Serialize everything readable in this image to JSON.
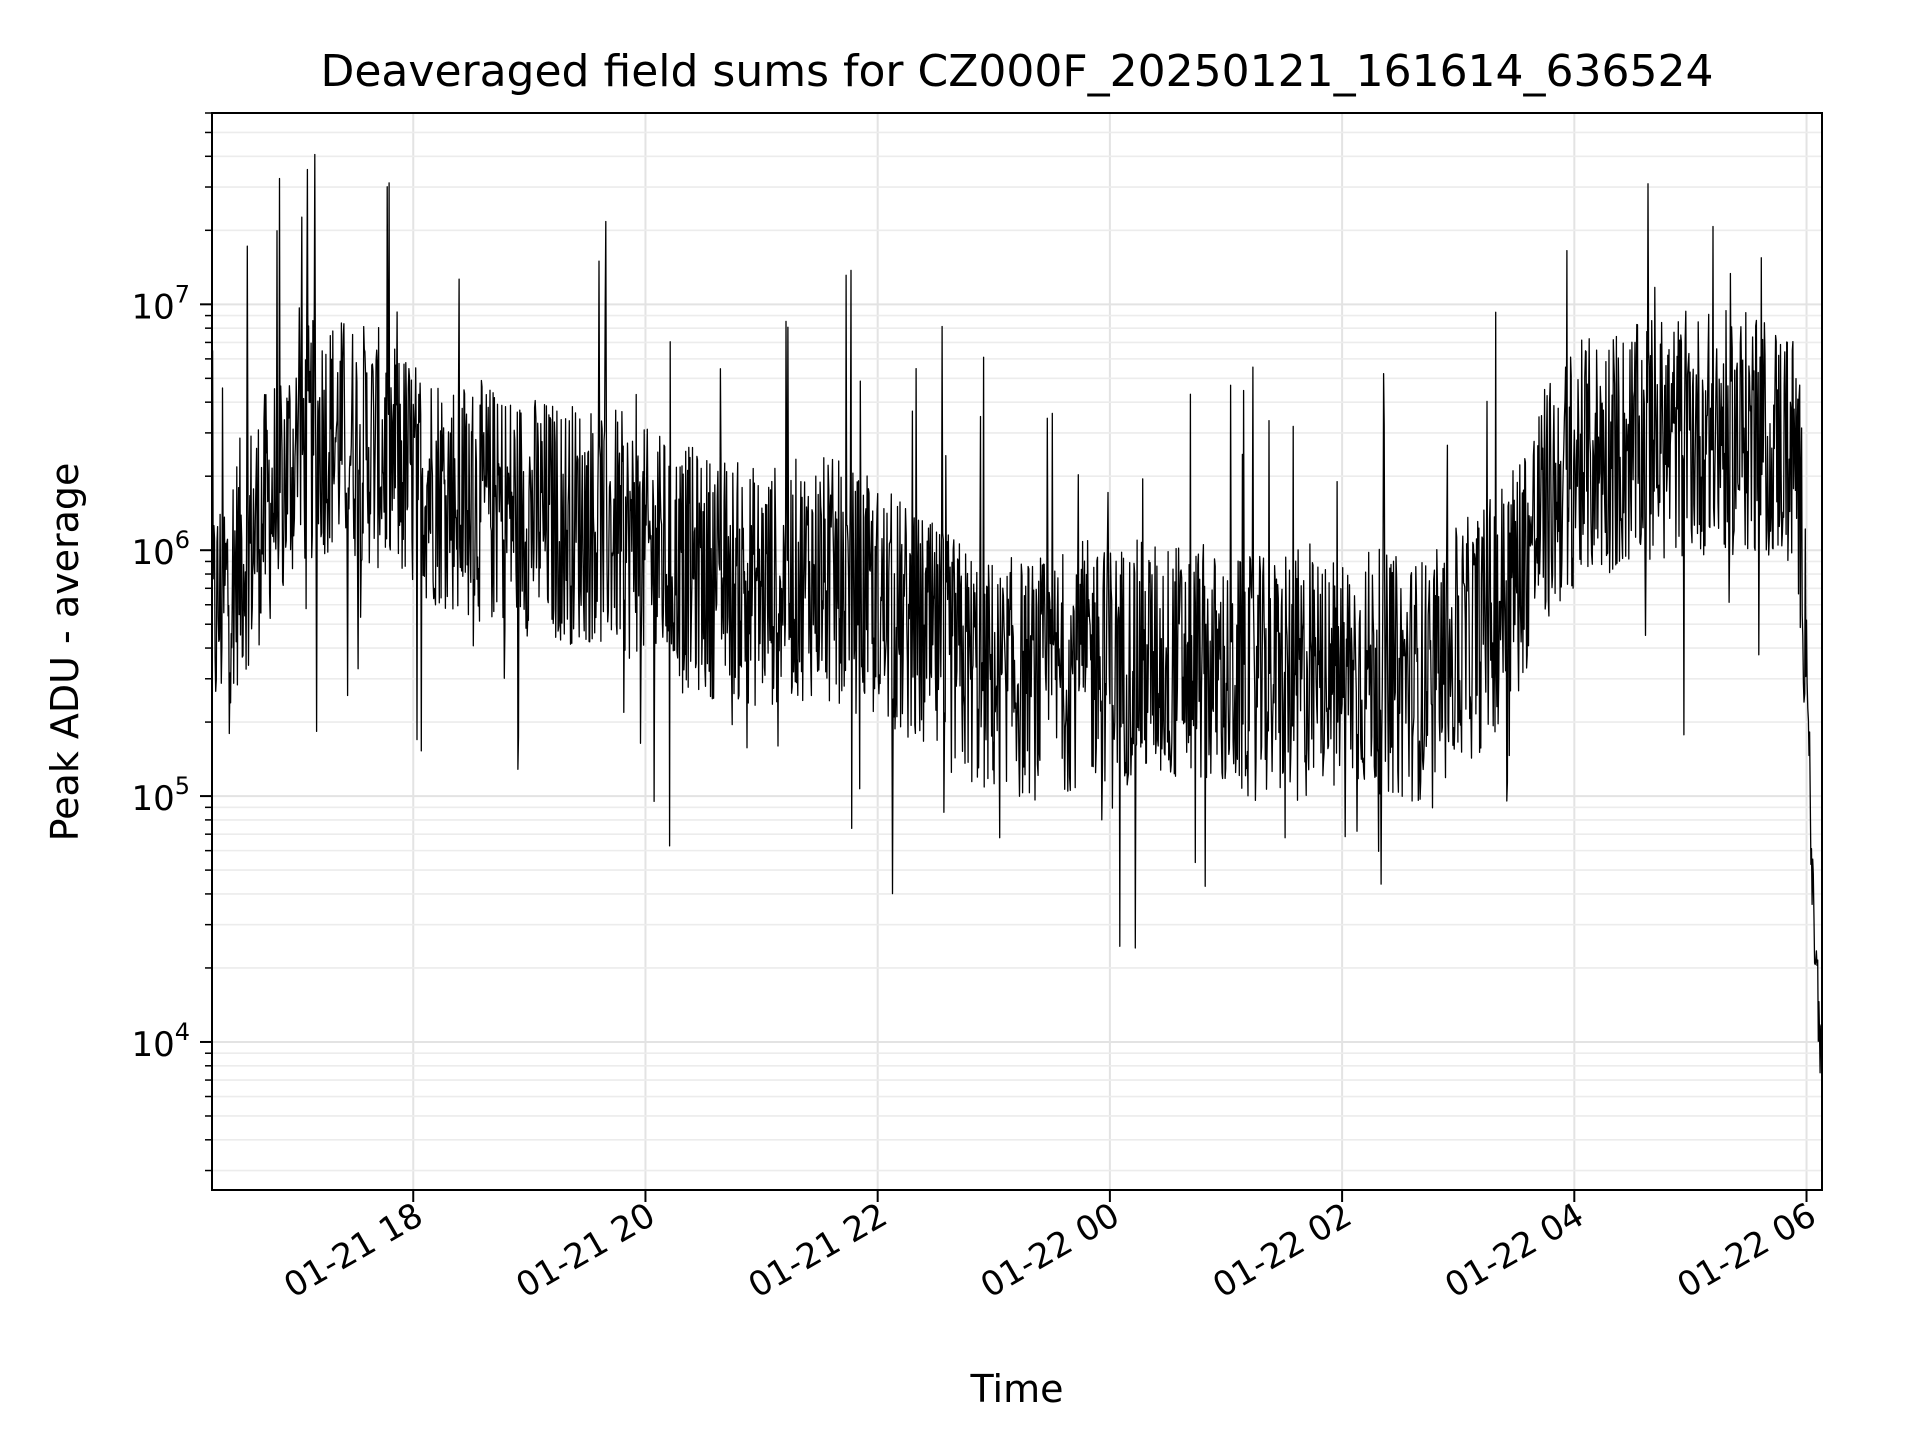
{
  "chart_data": {
    "type": "line",
    "title": "Deaveraged field sums for CZ000F_20250121_161614_636524",
    "xlabel": "Time",
    "ylabel": "Peak ADU - average",
    "y_scale": "log",
    "grid": true,
    "x_ticks": [
      "01-21 18",
      "01-21 20",
      "01-21 22",
      "01-22 00",
      "01-22 02",
      "01-22 04",
      "01-22 06"
    ],
    "y_ticks": [
      {
        "base": "10",
        "exp": "4",
        "value": 10000
      },
      {
        "base": "10",
        "exp": "5",
        "value": 100000
      },
      {
        "base": "10",
        "exp": "6",
        "value": 1000000
      },
      {
        "base": "10",
        "exp": "7",
        "value": 10000000
      }
    ],
    "xlim": [
      "2025-01-21 16:16",
      "2025-01-22 06:08"
    ],
    "ylim": [
      2500,
      60000000
    ],
    "series": [
      {
        "color": "#000000",
        "x": [
          "2025-01-21 16:16",
          "2025-01-21 16:30",
          "2025-01-21 16:45",
          "2025-01-21 17:00",
          "2025-01-21 17:15",
          "2025-01-21 17:30",
          "2025-01-21 17:45",
          "2025-01-21 18:00",
          "2025-01-21 18:15",
          "2025-01-21 18:30",
          "2025-01-21 18:45",
          "2025-01-21 19:00",
          "2025-01-21 19:15",
          "2025-01-21 19:30",
          "2025-01-21 19:45",
          "2025-01-21 20:00",
          "2025-01-21 20:15",
          "2025-01-21 20:30",
          "2025-01-21 20:45",
          "2025-01-21 21:00",
          "2025-01-21 21:15",
          "2025-01-21 21:30",
          "2025-01-21 21:45",
          "2025-01-21 22:00",
          "2025-01-21 22:15",
          "2025-01-21 22:30",
          "2025-01-21 22:45",
          "2025-01-21 23:00",
          "2025-01-21 23:15",
          "2025-01-21 23:30",
          "2025-01-21 23:45",
          "2025-01-22 00:00",
          "2025-01-22 00:15",
          "2025-01-22 00:30",
          "2025-01-22 00:45",
          "2025-01-22 01:00",
          "2025-01-22 01:15",
          "2025-01-22 01:30",
          "2025-01-22 01:45",
          "2025-01-22 02:00",
          "2025-01-22 02:15",
          "2025-01-22 02:30",
          "2025-01-22 02:45",
          "2025-01-22 03:00",
          "2025-01-22 03:15",
          "2025-01-22 03:30",
          "2025-01-22 03:45",
          "2025-01-22 04:00",
          "2025-01-22 04:15",
          "2025-01-22 04:30",
          "2025-01-22 04:45",
          "2025-01-22 05:00",
          "2025-01-22 05:15",
          "2025-01-22 05:30",
          "2025-01-22 05:45",
          "2025-01-22 05:55",
          "2025-01-22 06:00",
          "2025-01-22 06:03",
          "2025-01-22 06:06",
          "2025-01-22 06:08"
        ],
        "y": [
          500000,
          900000,
          1500000,
          2500000,
          3000000,
          2800000,
          2500000,
          2000000,
          1800000,
          1600000,
          1500000,
          1400000,
          1300000,
          1300000,
          1200000,
          1000000,
          900000,
          800000,
          750000,
          700000,
          750000,
          800000,
          700000,
          600000,
          500000,
          400000,
          350000,
          300000,
          300000,
          300000,
          350000,
          350000,
          350000,
          350000,
          350000,
          300000,
          300000,
          300000,
          300000,
          320000,
          330000,
          300000,
          300000,
          400000,
          500000,
          800000,
          1500000,
          2200000,
          2500000,
          2600000,
          2800000,
          3000000,
          3000000,
          3000000,
          2800000,
          2500000,
          500000,
          40000,
          15000,
          8000
        ]
      }
    ]
  }
}
